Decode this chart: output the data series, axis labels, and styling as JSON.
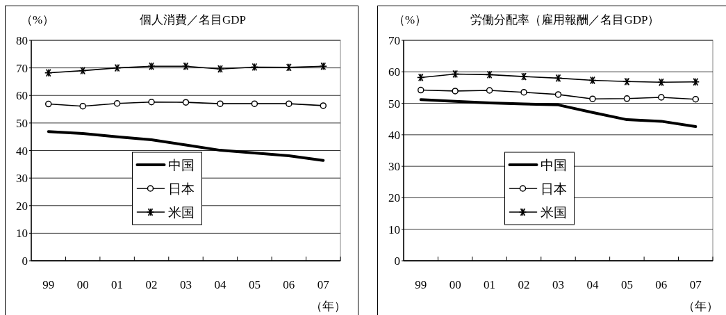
{
  "chart_data": [
    {
      "type": "line",
      "title": "個人消費／名目GDP",
      "ylabel": "（%）",
      "xlabel": "（年）",
      "categories": [
        "99",
        "00",
        "01",
        "02",
        "03",
        "04",
        "05",
        "06",
        "07"
      ],
      "ylim": [
        0,
        80
      ],
      "yticks": [
        0,
        10,
        20,
        30,
        40,
        50,
        60,
        70,
        80
      ],
      "grid": "y",
      "legend": "bottom",
      "line_style": "solid",
      "series": [
        {
          "name": "中国",
          "color": "#000000",
          "marker": "none",
          "values": [
            46.9,
            46.2,
            45.0,
            43.9,
            42.0,
            40.1,
            39.1,
            38.1,
            36.4
          ]
        },
        {
          "name": "日本",
          "color": "#000000",
          "marker": "circle",
          "values": [
            56.9,
            56.1,
            57.1,
            57.6,
            57.5,
            57.0,
            57.0,
            57.0,
            56.3
          ]
        },
        {
          "name": "米国",
          "color": "#000000",
          "marker": "cross",
          "values": [
            68.2,
            69.0,
            70.0,
            70.6,
            70.6,
            69.6,
            70.3,
            70.2,
            70.6
          ]
        }
      ]
    },
    {
      "type": "line",
      "title": "労働分配率（雇用報酬／名目GDP）",
      "ylabel": "（%）",
      "xlabel": "（年）",
      "categories": [
        "99",
        "00",
        "01",
        "02",
        "03",
        "04",
        "05",
        "06",
        "07"
      ],
      "ylim": [
        0,
        70
      ],
      "yticks": [
        0,
        10,
        20,
        30,
        40,
        50,
        60,
        70
      ],
      "grid": "y",
      "legend": "bottom",
      "line_style": "solid",
      "series": [
        {
          "name": "中国",
          "color": "#000000",
          "marker": "none",
          "values": [
            51.2,
            50.6,
            50.1,
            49.8,
            49.5,
            47.1,
            44.8,
            44.3,
            42.6
          ]
        },
        {
          "name": "日本",
          "color": "#000000",
          "marker": "circle",
          "values": [
            54.2,
            53.9,
            54.1,
            53.5,
            52.8,
            51.4,
            51.5,
            51.9,
            51.3
          ]
        },
        {
          "name": "米国",
          "color": "#000000",
          "marker": "cross",
          "values": [
            58.2,
            59.3,
            59.1,
            58.5,
            58.0,
            57.3,
            56.9,
            56.7,
            56.8
          ]
        }
      ]
    }
  ]
}
